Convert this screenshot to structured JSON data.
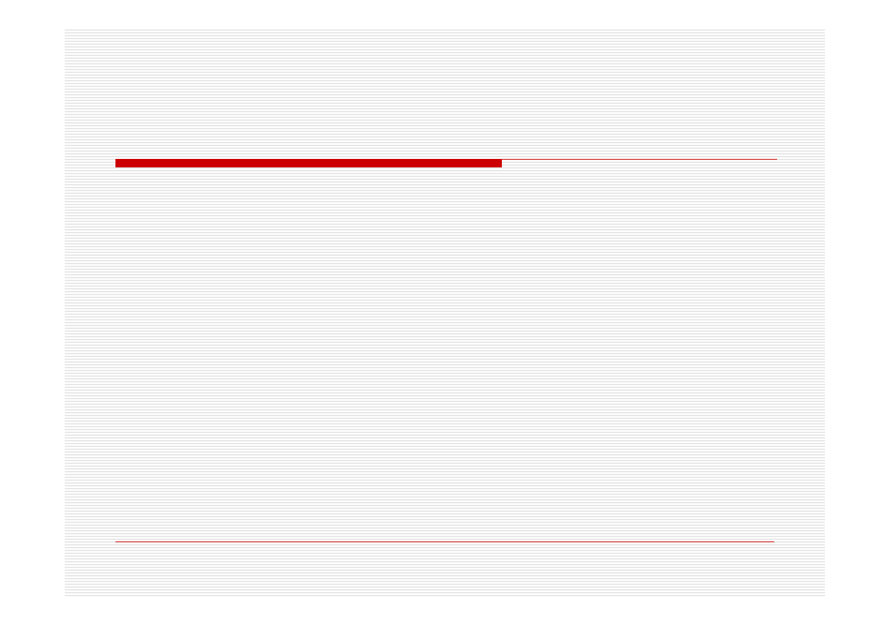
{
  "slide": {
    "background_stripe_color": "#dcdcdc",
    "accent_color": "#cc0000"
  }
}
